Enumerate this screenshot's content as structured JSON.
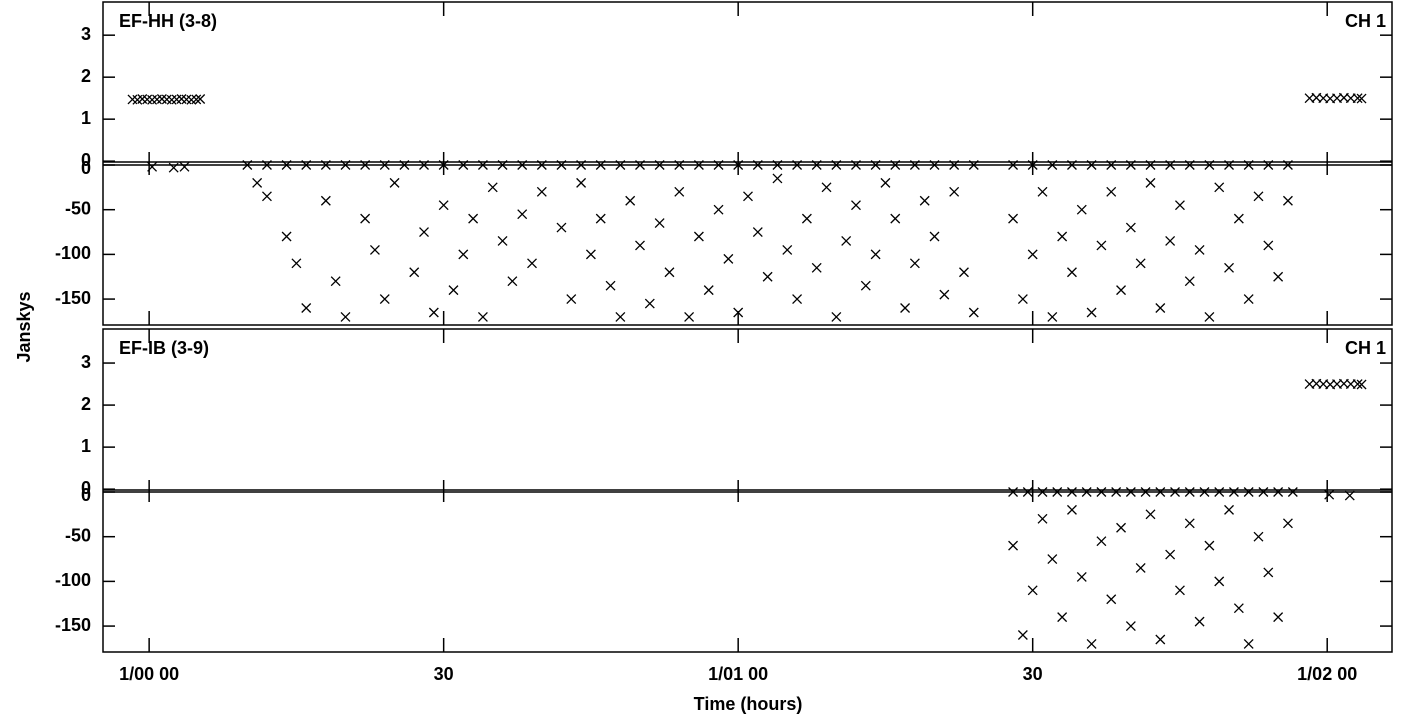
{
  "chart_data": [
    {
      "type": "scatter",
      "title": "EF-HH (3-8)",
      "annotation": "CH 1",
      "ylabel": "Janskys",
      "ylim": [
        -0.02,
        3.79
      ],
      "yticks": [
        0,
        1,
        2,
        3
      ],
      "y2lim": [
        -179,
        0
      ],
      "y2ticks": [
        0,
        -50,
        -100,
        -150
      ],
      "series": [
        {
          "color": "#000000",
          "x": [
            -1.7,
            -1.2,
            -0.7,
            -0.2,
            0.3,
            0.8,
            1.3,
            1.8,
            2.3,
            2.8,
            3.3,
            3.8,
            4.3,
            4.8,
            5.2,
            118.2,
            118.9,
            119.6,
            120.3,
            121,
            121.7,
            122.4,
            123.1,
            123.5
          ],
          "values": [
            1.47,
            1.46,
            1.48,
            1.47,
            1.46,
            1.47,
            1.48,
            1.47,
            1.46,
            1.47,
            1.48,
            1.47,
            1.46,
            1.47,
            1.48,
            1.5,
            1.51,
            1.5,
            1.49,
            1.5,
            1.51,
            1.5,
            1.5,
            1.49
          ]
        },
        {
          "color": "#000000",
          "axis": "y2",
          "x": [
            0.3,
            2.5,
            3.6,
            10,
            12,
            14,
            16,
            18,
            20,
            22,
            24,
            26,
            28,
            30,
            32,
            34,
            36,
            38,
            40,
            42,
            44,
            46,
            48,
            50,
            52,
            54,
            56,
            58,
            60,
            62,
            64,
            66,
            68,
            70,
            72,
            74,
            76,
            78,
            80,
            82,
            84,
            88,
            90,
            92,
            94,
            96,
            98,
            100,
            102,
            104,
            106,
            108,
            110,
            112,
            114,
            116,
            11,
            12,
            14,
            15,
            16,
            18,
            19,
            20,
            22,
            23,
            24,
            25,
            27,
            28,
            29,
            30,
            31,
            32,
            33,
            34,
            35,
            36,
            37,
            38,
            39,
            40,
            42,
            43,
            44,
            45,
            46,
            47,
            48,
            49,
            50,
            51,
            52,
            53,
            54,
            55,
            56,
            57,
            58,
            59,
            60,
            61,
            62,
            63,
            64,
            65,
            66,
            67,
            68,
            69,
            70,
            71,
            72,
            73,
            74,
            75,
            76,
            77,
            78,
            79,
            80,
            81,
            82,
            83,
            84,
            88,
            89,
            90,
            91,
            92,
            93,
            94,
            95,
            96,
            97,
            98,
            99,
            100,
            101,
            102,
            103,
            104,
            105,
            106,
            107,
            108,
            109,
            110,
            111,
            112,
            113,
            114,
            115,
            116
          ],
          "values": [
            -2,
            -3,
            -2,
            0,
            0,
            0,
            0,
            0,
            0,
            0,
            0,
            0,
            0,
            0,
            0,
            0,
            0,
            0,
            0,
            0,
            0,
            0,
            0,
            0,
            0,
            0,
            0,
            0,
            0,
            0,
            0,
            0,
            0,
            0,
            0,
            0,
            0,
            0,
            0,
            0,
            0,
            0,
            0,
            0,
            0,
            0,
            0,
            0,
            0,
            0,
            0,
            0,
            0,
            0,
            0,
            0,
            -20,
            -35,
            -80,
            -110,
            -160,
            -40,
            -130,
            -170,
            -60,
            -95,
            -150,
            -20,
            -120,
            -75,
            -165,
            -45,
            -140,
            -100,
            -60,
            -170,
            -25,
            -85,
            -130,
            -55,
            -110,
            -30,
            -70,
            -150,
            -20,
            -100,
            -60,
            -135,
            -170,
            -40,
            -90,
            -155,
            -65,
            -120,
            -30,
            -170,
            -80,
            -140,
            -50,
            -105,
            -165,
            -35,
            -75,
            -125,
            -15,
            -95,
            -150,
            -60,
            -115,
            -25,
            -170,
            -85,
            -45,
            -135,
            -100,
            -20,
            -60,
            -160,
            -110,
            -40,
            -80,
            -145,
            -30,
            -120,
            -165,
            -60,
            -150,
            -100,
            -30,
            -170,
            -80,
            -120,
            -50,
            -165,
            -90,
            -30,
            -140,
            -70,
            -110,
            -20,
            -160,
            -85,
            -45,
            -130,
            -95,
            -170,
            -25,
            -115,
            -60,
            -150,
            -35,
            -90,
            -125,
            -40
          ]
        }
      ]
    },
    {
      "type": "scatter",
      "title": "EF-IB (3-9)",
      "annotation": "CH 1",
      "xlabel": "Time (hours)",
      "xlim": [
        -4.7,
        126.6
      ],
      "xticks": [
        {
          "value": 0,
          "label": "1/00 00"
        },
        30,
        {
          "value": 60,
          "label": "1/01 00"
        },
        {
          "value": 90,
          "label": "30"
        },
        {
          "value": 120,
          "label": "1/02 00"
        }
      ],
      "ylim": [
        -0.02,
        3.81
      ],
      "yticks": [
        0,
        1,
        2,
        3
      ],
      "y2lim": [
        -179,
        0
      ],
      "y2ticks": [
        0,
        -50,
        -100,
        -150
      ],
      "series": [
        {
          "color": "#000000",
          "x": [
            118.2,
            118.9,
            119.6,
            120.3,
            121,
            121.7,
            122.4,
            123.1,
            123.5
          ],
          "values": [
            2.5,
            2.51,
            2.5,
            2.49,
            2.5,
            2.51,
            2.5,
            2.5,
            2.49
          ]
        },
        {
          "color": "#000000",
          "axis": "y2",
          "x": [
            120.2,
            122.3,
            88,
            89.5,
            91,
            92.5,
            94,
            95.5,
            97,
            98.5,
            100,
            101.5,
            103,
            104.5,
            106,
            107.5,
            109,
            110.5,
            112,
            113.5,
            115,
            116.5,
            88,
            89,
            90,
            91,
            92,
            93,
            94,
            95,
            96,
            97,
            98,
            99,
            100,
            101,
            102,
            103,
            104,
            105,
            106,
            107,
            108,
            109,
            110,
            111,
            112,
            113,
            114,
            115,
            116
          ],
          "values": [
            -3,
            -4,
            0,
            0,
            0,
            0,
            0,
            0,
            0,
            0,
            0,
            0,
            0,
            0,
            0,
            0,
            0,
            0,
            0,
            0,
            0,
            0,
            -60,
            -160,
            -110,
            -30,
            -75,
            -140,
            -20,
            -95,
            -170,
            -55,
            -120,
            -40,
            -150,
            -85,
            -25,
            -165,
            -70,
            -110,
            -35,
            -145,
            -60,
            -100,
            -20,
            -130,
            -170,
            -50,
            -90,
            -140,
            -35
          ]
        }
      ]
    }
  ]
}
